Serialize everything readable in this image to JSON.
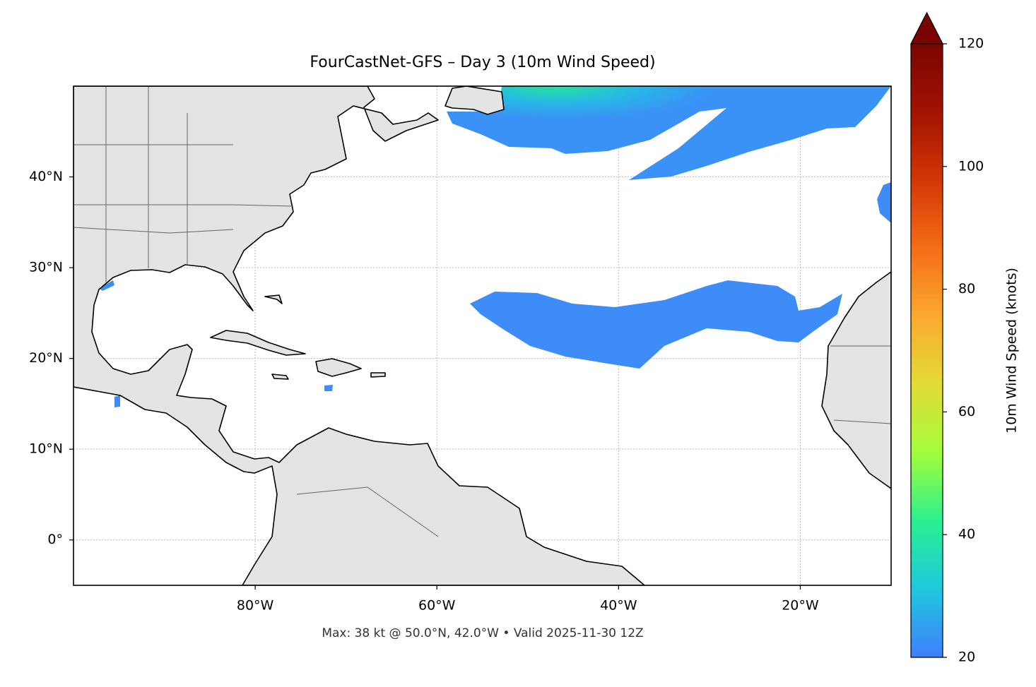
{
  "chart_data": {
    "type": "map",
    "title": "FourCastNet-GFS – Day 3 (10m Wind Speed)",
    "note": "Max: 38 kt @ 50.0°N, 42.0°W • Valid 2025-11-30 12Z",
    "xlim": [
      -100,
      -10
    ],
    "ylim": [
      -5,
      50
    ],
    "xticks": [
      {
        "value": -80,
        "label": "80°W"
      },
      {
        "value": -60,
        "label": "60°W"
      },
      {
        "value": -40,
        "label": "40°W"
      },
      {
        "value": -20,
        "label": "20°W"
      }
    ],
    "yticks": [
      {
        "value": 0,
        "label": "0°"
      },
      {
        "value": 10,
        "label": "10°N"
      },
      {
        "value": 20,
        "label": "20°N"
      },
      {
        "value": 30,
        "label": "30°N"
      },
      {
        "value": 40,
        "label": "40°N"
      }
    ],
    "grid": true,
    "colorbar": {
      "label": "10m Wind Speed (knots)",
      "lim": [
        20,
        120
      ],
      "ticks": [
        20,
        40,
        60,
        80,
        100,
        120
      ],
      "extend": "max",
      "colors": [
        "#3f7ffb",
        "#1fc8de",
        "#2af08f",
        "#a3fd3c",
        "#e2dc38",
        "#fba92f",
        "#f46d17",
        "#d23705",
        "#a11201",
        "#7a0403"
      ]
    }
  }
}
